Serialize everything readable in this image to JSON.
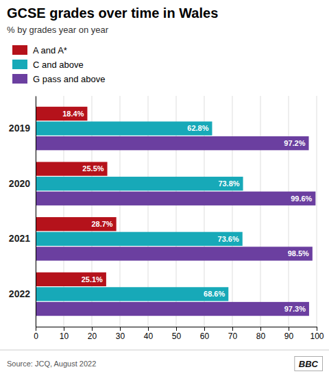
{
  "chart_data": {
    "type": "bar",
    "orientation": "horizontal",
    "title": "GCSE grades over time in Wales",
    "subtitle": "% by grades year on year",
    "categories": [
      "2019",
      "2020",
      "2021",
      "2022"
    ],
    "series": [
      {
        "name": "A and A*",
        "color": "#b5121b",
        "values": [
          18.4,
          25.5,
          28.7,
          25.1
        ],
        "value_labels": [
          "18.4%",
          "25.5%",
          "28.7%",
          "25.1%"
        ]
      },
      {
        "name": "C and above",
        "color": "#17a9b8",
        "values": [
          62.8,
          73.8,
          73.6,
          68.6
        ],
        "value_labels": [
          "62.8%",
          "73.8%",
          "73.6%",
          "68.6%"
        ]
      },
      {
        "name": "G pass and above",
        "color": "#6b3fa0",
        "values": [
          97.2,
          99.6,
          98.5,
          97.3
        ],
        "value_labels": [
          "97.2%",
          "99.6%",
          "98.5%",
          "97.3%"
        ]
      }
    ],
    "xlim": [
      0,
      100
    ],
    "xticks": [
      0,
      10,
      20,
      30,
      40,
      50,
      60,
      70,
      80,
      90,
      100
    ],
    "grid": true,
    "legend": "top-left",
    "data_labels": true,
    "source": "Source: JCQ, August 2022",
    "annotations": [
      "BBC"
    ]
  }
}
